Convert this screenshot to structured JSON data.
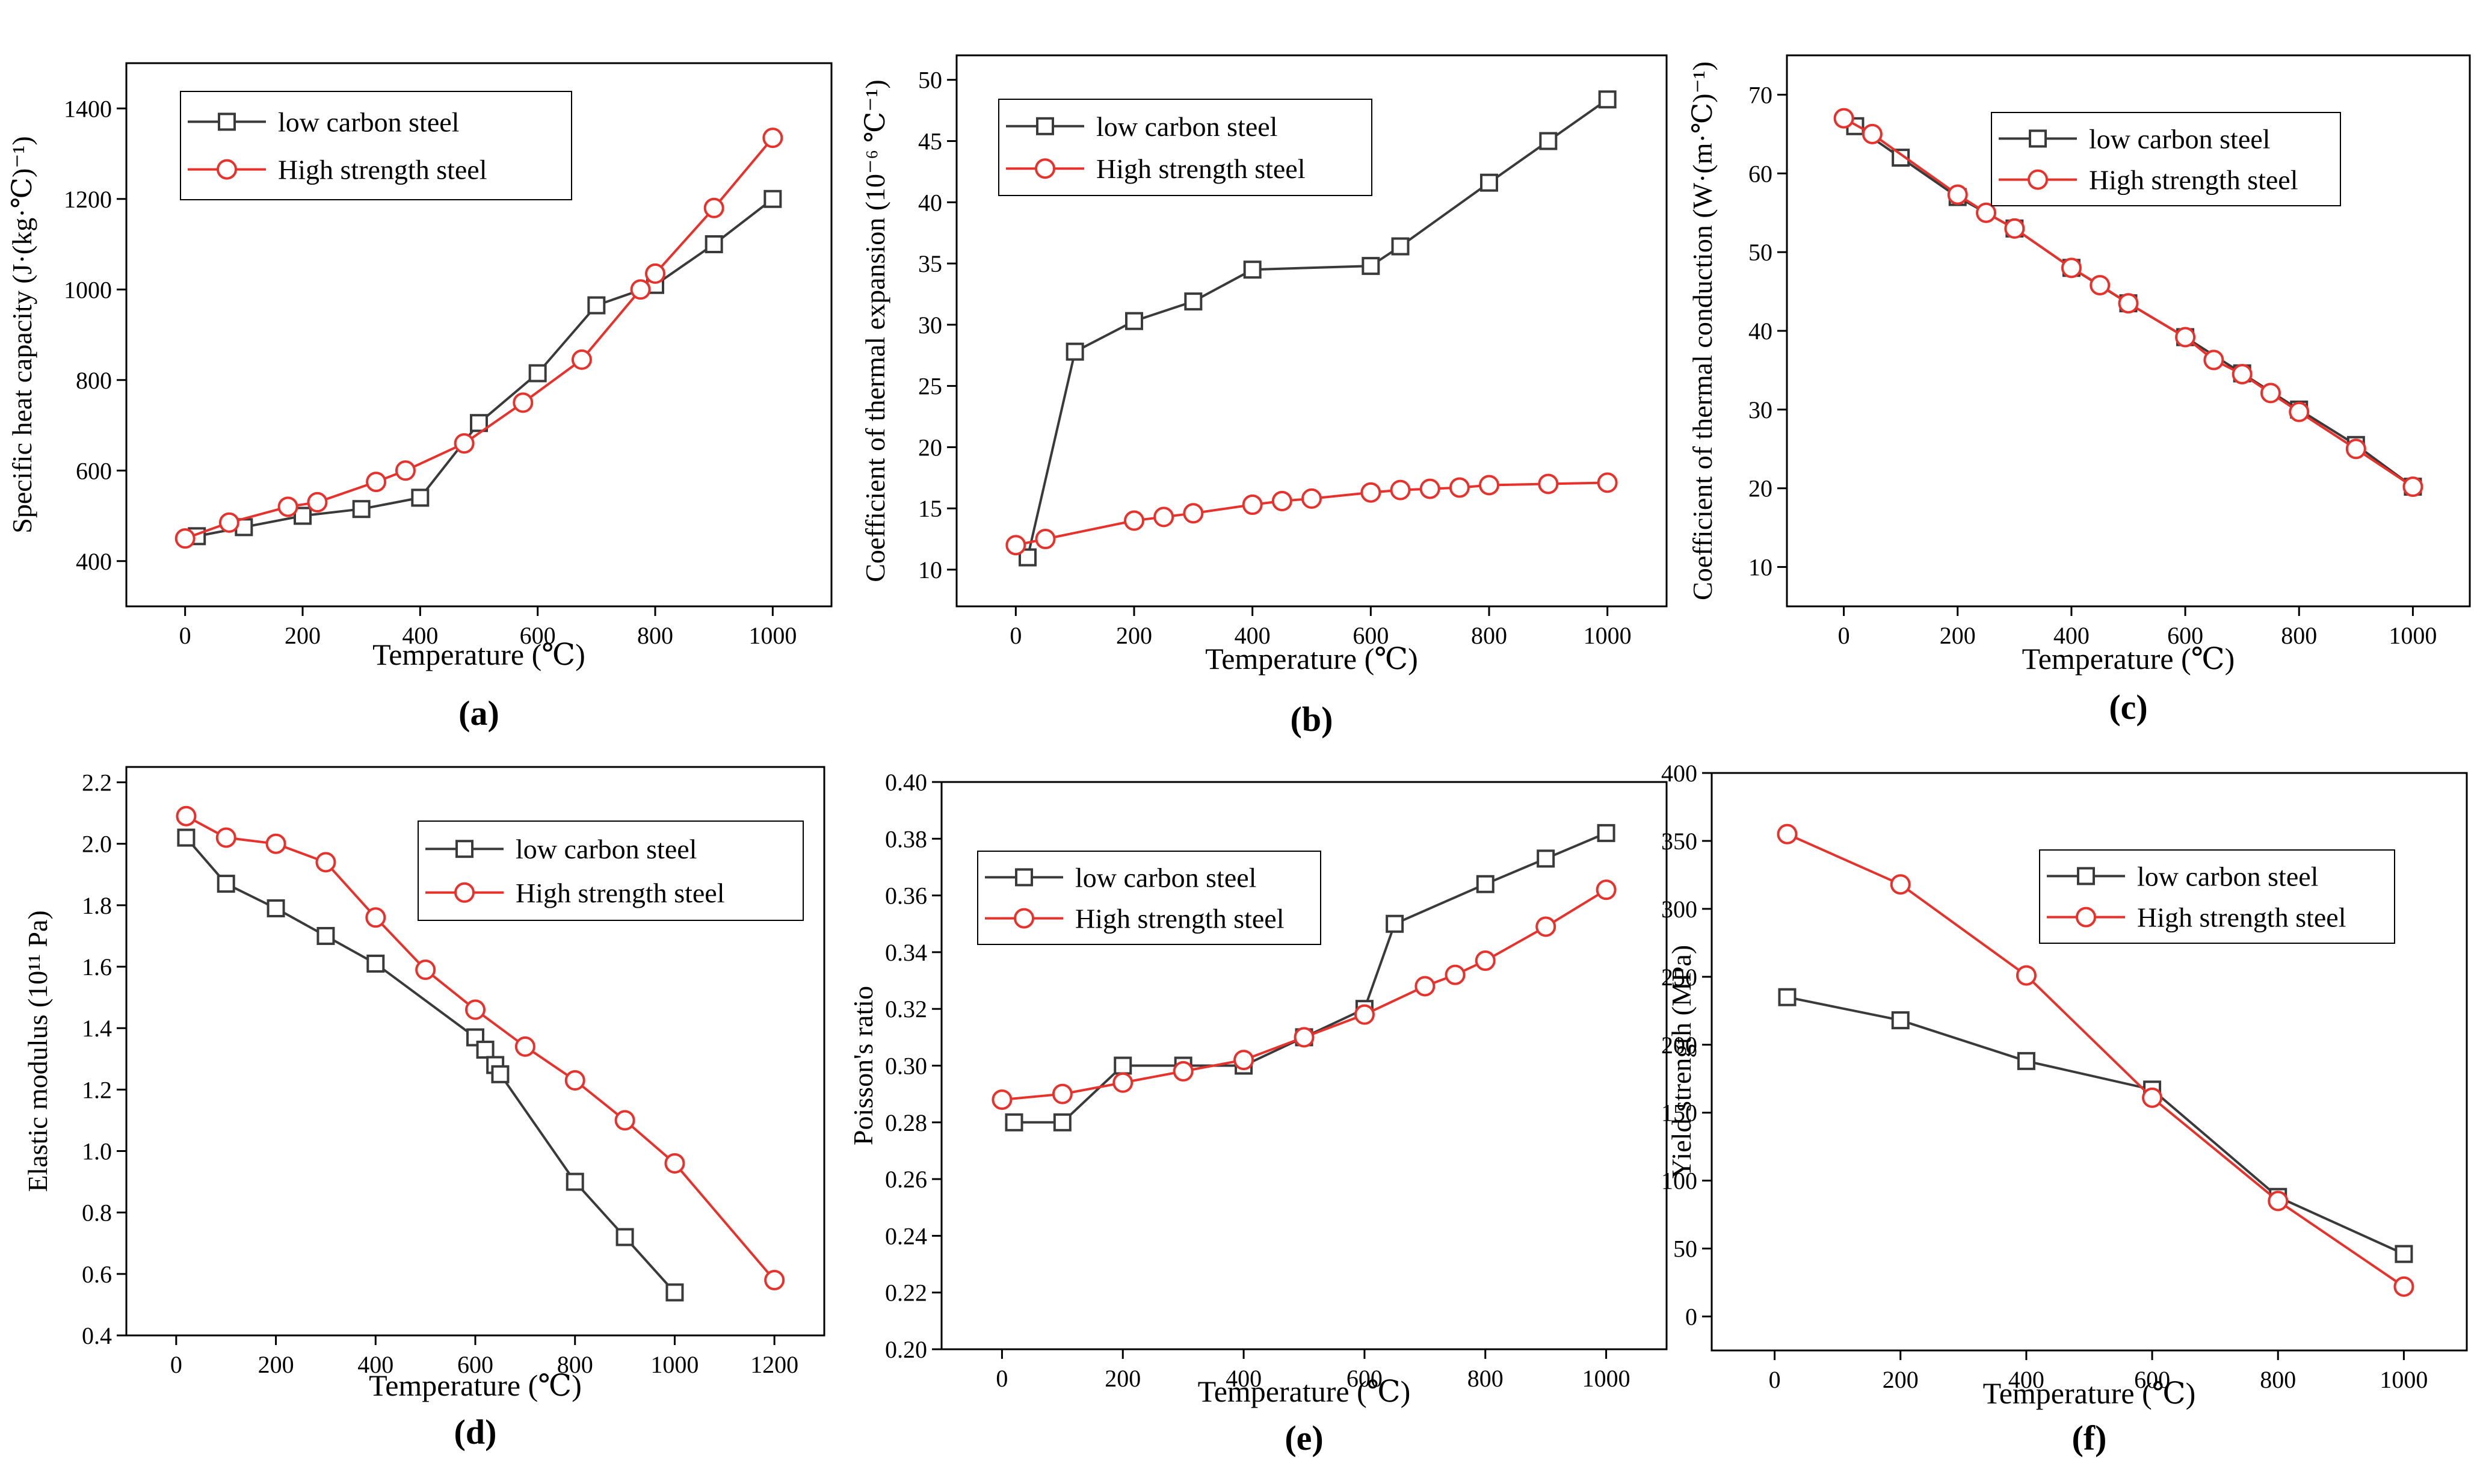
{
  "colors": {
    "low_carbon": "#3a3a3a",
    "high_strength": "#e8312b",
    "axis": "#000000"
  },
  "chart_data": [
    {
      "panel": "a",
      "type": "line",
      "label": "(a)",
      "xlabel": "Temperature (℃)",
      "ylabel": "Specific heat capacity (J·(kg·℃)⁻¹)",
      "xlim": [
        -100,
        1100
      ],
      "ylim": [
        300,
        1500
      ],
      "xticks": [
        0,
        200,
        400,
        600,
        800,
        1000
      ],
      "yticks": [
        400,
        600,
        800,
        1000,
        1200,
        1400
      ],
      "ytick_decimals": 0,
      "legend_position": "top-left",
      "series": [
        {
          "name": "low carbon steel",
          "marker": "square",
          "x": [
            20,
            100,
            200,
            300,
            400,
            500,
            600,
            700,
            800,
            900,
            1000
          ],
          "y": [
            455,
            475,
            500,
            515,
            540,
            705,
            815,
            965,
            1010,
            1100,
            1200
          ]
        },
        {
          "name": "High strength steel",
          "marker": "circle",
          "x": [
            0,
            75,
            175,
            225,
            325,
            375,
            475,
            575,
            675,
            775,
            800,
            900,
            1000
          ],
          "y": [
            450,
            485,
            520,
            530,
            575,
            600,
            660,
            750,
            845,
            1000,
            1035,
            1180,
            1335
          ]
        }
      ]
    },
    {
      "panel": "b",
      "type": "line",
      "label": "(b)",
      "xlabel": "Temperature (℃)",
      "ylabel": "Coefficient of thermal expansion (10⁻⁶ ℃⁻¹)",
      "xlim": [
        -100,
        1100
      ],
      "ylim": [
        7,
        52
      ],
      "xticks": [
        0,
        200,
        400,
        600,
        800,
        1000
      ],
      "yticks": [
        10,
        15,
        20,
        25,
        30,
        35,
        40,
        45,
        50
      ],
      "ytick_decimals": 0,
      "legend_position": "top-left",
      "series": [
        {
          "name": "low carbon steel",
          "marker": "square",
          "x": [
            20,
            100,
            200,
            300,
            400,
            600,
            650,
            800,
            900,
            1000
          ],
          "y": [
            11,
            27.8,
            30.3,
            31.9,
            34.5,
            34.8,
            36.4,
            41.6,
            45,
            48.4
          ]
        },
        {
          "name": "High strength steel",
          "marker": "circle",
          "x": [
            0,
            50,
            200,
            250,
            300,
            400,
            450,
            500,
            600,
            650,
            700,
            750,
            800,
            900,
            1000
          ],
          "y": [
            12,
            12.5,
            14,
            14.3,
            14.6,
            15.3,
            15.6,
            15.8,
            16.3,
            16.5,
            16.6,
            16.7,
            16.9,
            17,
            17.1
          ]
        }
      ]
    },
    {
      "panel": "c",
      "type": "line",
      "label": "(c)",
      "xlabel": "Temperature (℃)",
      "ylabel": "Coefficient of thermal conduction (W·(m·℃)⁻¹)",
      "xlim": [
        -100,
        1100
      ],
      "ylim": [
        5,
        75
      ],
      "xticks": [
        0,
        200,
        400,
        600,
        800,
        1000
      ],
      "yticks": [
        10,
        20,
        30,
        40,
        50,
        60,
        70
      ],
      "ytick_decimals": 0,
      "legend_position": "top-right",
      "series": [
        {
          "name": "low carbon steel",
          "marker": "square",
          "x": [
            20,
            100,
            200,
            300,
            400,
            500,
            600,
            700,
            800,
            900,
            1000
          ],
          "y": [
            66,
            62,
            57,
            53,
            48,
            43.5,
            39.2,
            34.6,
            30,
            25.5,
            20.2
          ]
        },
        {
          "name": "High strength steel",
          "marker": "circle",
          "x": [
            0,
            50,
            200,
            250,
            300,
            400,
            450,
            500,
            600,
            650,
            700,
            750,
            800,
            900,
            1000
          ],
          "y": [
            67,
            65,
            57.3,
            55,
            53,
            48,
            45.8,
            43.5,
            39.2,
            36.3,
            34.5,
            32.1,
            29.7,
            25,
            20.2
          ]
        }
      ]
    },
    {
      "panel": "d",
      "type": "line",
      "label": "(d)",
      "xlabel": "Temperature (℃)",
      "ylabel": "Elastic modulus (10¹¹ Pa)",
      "xlim": [
        -100,
        1300
      ],
      "ylim": [
        0.4,
        2.25
      ],
      "xticks": [
        0,
        200,
        400,
        600,
        800,
        1000,
        1200
      ],
      "yticks": [
        0.4,
        0.6,
        0.8,
        1.0,
        1.2,
        1.4,
        1.6,
        1.8,
        2.0,
        2.2
      ],
      "ytick_decimals": 1,
      "legend_position": "top-right",
      "series": [
        {
          "name": "low carbon steel",
          "marker": "square",
          "x": [
            20,
            100,
            200,
            300,
            400,
            600,
            620,
            640,
            650,
            800,
            900,
            1000
          ],
          "y": [
            2.02,
            1.87,
            1.79,
            1.7,
            1.61,
            1.37,
            1.33,
            1.28,
            1.25,
            0.9,
            0.72,
            0.54
          ]
        },
        {
          "name": "High strength steel",
          "marker": "circle",
          "x": [
            20,
            100,
            200,
            300,
            400,
            500,
            600,
            700,
            800,
            900,
            1000,
            1200
          ],
          "y": [
            2.09,
            2.02,
            2.0,
            1.94,
            1.76,
            1.59,
            1.46,
            1.34,
            1.23,
            1.1,
            0.96,
            0.58
          ]
        }
      ]
    },
    {
      "panel": "e",
      "type": "line",
      "label": "(e)",
      "xlabel": "Temperature (℃)",
      "ylabel": "Poisson's ratio",
      "xlim": [
        -100,
        1100
      ],
      "ylim": [
        0.2,
        0.4
      ],
      "xticks": [
        0,
        200,
        400,
        600,
        800,
        1000
      ],
      "yticks": [
        0.2,
        0.22,
        0.24,
        0.26,
        0.28,
        0.3,
        0.32,
        0.34,
        0.36,
        0.38,
        0.4
      ],
      "ytick_decimals": 2,
      "legend_position": "top-left",
      "series": [
        {
          "name": "low carbon steel",
          "marker": "square",
          "x": [
            20,
            100,
            200,
            300,
            400,
            500,
            600,
            650,
            800,
            900,
            1000
          ],
          "y": [
            0.28,
            0.28,
            0.3,
            0.3,
            0.3,
            0.31,
            0.32,
            0.35,
            0.364,
            0.373,
            0.382
          ]
        },
        {
          "name": "High strength steel",
          "marker": "circle",
          "x": [
            0,
            100,
            200,
            300,
            400,
            500,
            600,
            700,
            750,
            800,
            900,
            1000
          ],
          "y": [
            0.288,
            0.29,
            0.294,
            0.298,
            0.302,
            0.31,
            0.318,
            0.328,
            0.332,
            0.337,
            0.349,
            0.362
          ]
        }
      ]
    },
    {
      "panel": "f",
      "type": "line",
      "label": "(f)",
      "xlabel": "Temperature (℃)",
      "ylabel": "Yield strength (MPa)",
      "xlim": [
        -100,
        1100
      ],
      "ylim": [
        -25,
        400
      ],
      "xticks": [
        0,
        200,
        400,
        600,
        800,
        1000
      ],
      "yticks": [
        0,
        50,
        100,
        150,
        200,
        250,
        300,
        350,
        400
      ],
      "ytick_decimals": 0,
      "legend_position": "top-right",
      "series": [
        {
          "name": "low carbon steel",
          "marker": "square",
          "x": [
            20,
            200,
            400,
            600,
            800,
            1000
          ],
          "y": [
            235,
            218,
            188,
            167,
            88,
            46
          ]
        },
        {
          "name": "High strength steel",
          "marker": "circle",
          "x": [
            20,
            200,
            400,
            600,
            800,
            1000
          ],
          "y": [
            355,
            318,
            251,
            161,
            85,
            22
          ]
        }
      ]
    }
  ]
}
